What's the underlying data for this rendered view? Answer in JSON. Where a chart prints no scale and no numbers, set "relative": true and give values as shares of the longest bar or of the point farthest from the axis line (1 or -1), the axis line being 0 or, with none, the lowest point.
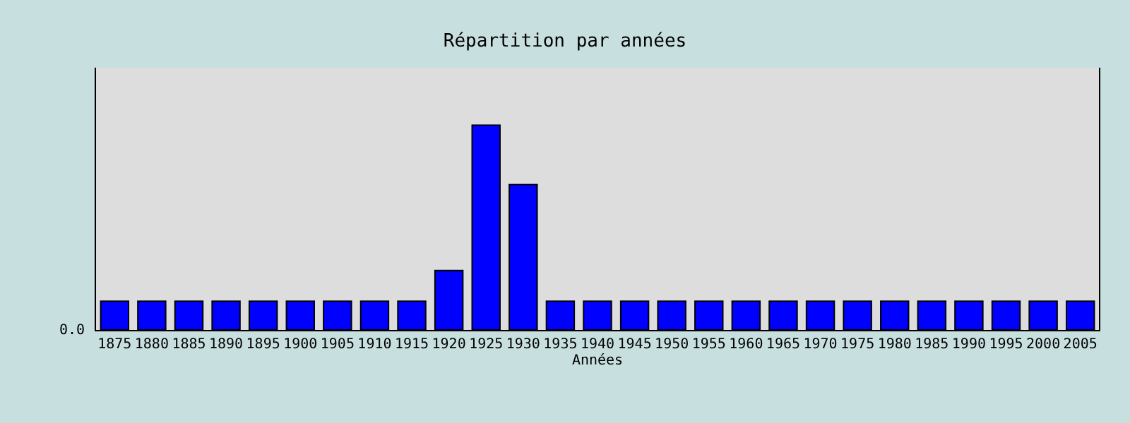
{
  "chart_data": {
    "type": "bar",
    "title": "Répartition par années",
    "xlabel": "Années",
    "relative": true,
    "categories": [
      "1875",
      "1880",
      "1885",
      "1890",
      "1895",
      "1900",
      "1905",
      "1910",
      "1915",
      "1920",
      "1925",
      "1930",
      "1935",
      "1940",
      "1945",
      "1950",
      "1955",
      "1960",
      "1965",
      "1970",
      "1975",
      "1980",
      "1985",
      "1990",
      "1995",
      "2000",
      "2005"
    ],
    "values": [
      0.14,
      0.14,
      0.14,
      0.14,
      0.14,
      0.14,
      0.14,
      0.14,
      0.14,
      0.29,
      1,
      0.71,
      0.14,
      0.14,
      0.14,
      0.14,
      0.14,
      0.14,
      0.14,
      0.14,
      0.14,
      0.14,
      0.14,
      0.14,
      0.14,
      0.14,
      0.14
    ],
    "color": "#0000ff",
    "annotations": [
      "0.0"
    ],
    "grid": false
  }
}
